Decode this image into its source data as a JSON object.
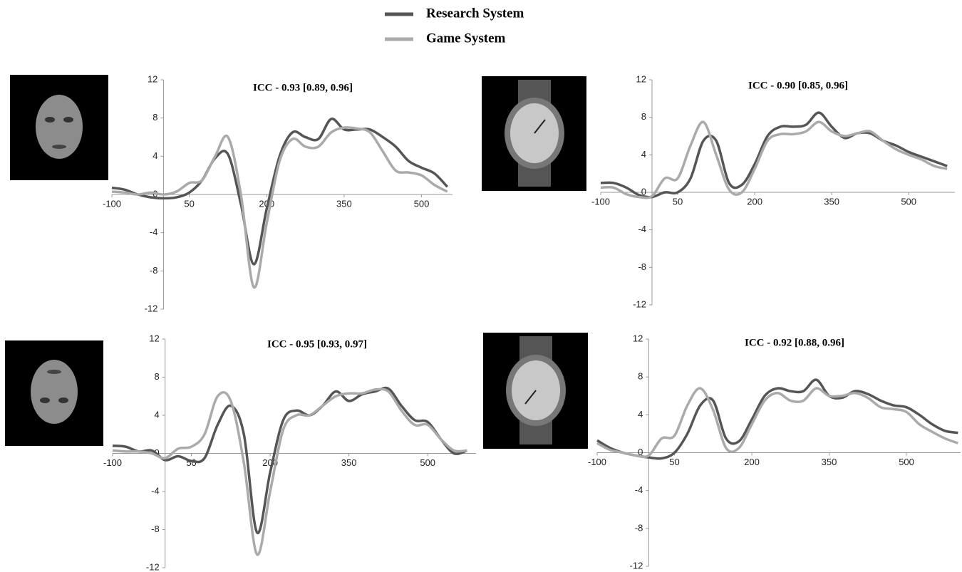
{
  "chart_data": [
    {
      "type": "line",
      "title": "ICC - 0.93 [0.89, 0.96]",
      "x": [
        -100,
        -75,
        -50,
        -25,
        0,
        25,
        50,
        75,
        100,
        125,
        150,
        175,
        200,
        225,
        250,
        275,
        300,
        325,
        350,
        375,
        400,
        425,
        450,
        475,
        500,
        525,
        550
      ],
      "series": [
        {
          "name": "Research System",
          "color": "#555555",
          "values": [
            0.7,
            0.5,
            0,
            -0.3,
            -0.4,
            -0.3,
            0.2,
            1.5,
            3.8,
            4.2,
            -1,
            -7.3,
            -1.5,
            4,
            6.5,
            6,
            5.8,
            7.9,
            6.8,
            6.8,
            6.8,
            6,
            5,
            3.5,
            2.8,
            2.2,
            0.8
          ]
        },
        {
          "name": "Game System",
          "color": "#aaaaaa",
          "values": [
            0.3,
            0.2,
            0,
            0.2,
            0,
            0.3,
            1.2,
            1.5,
            4,
            6,
            0,
            -9.7,
            -3,
            3.5,
            5.8,
            5,
            5,
            6.5,
            7,
            6.9,
            6.5,
            4.5,
            2.5,
            2.3,
            2,
            1,
            0.3
          ]
        }
      ],
      "xlim": [
        -100,
        560
      ],
      "ylim": [
        -12,
        12
      ],
      "xticks": [
        -100,
        50,
        200,
        350,
        500
      ],
      "yticks": [
        -12,
        -8,
        -4,
        0,
        4,
        8,
        12
      ]
    },
    {
      "type": "line",
      "title": "ICC - 0.90 [0.85, 0.96]",
      "x": [
        -100,
        -75,
        -50,
        -25,
        0,
        25,
        50,
        75,
        100,
        125,
        150,
        175,
        200,
        225,
        250,
        275,
        300,
        325,
        350,
        375,
        400,
        425,
        450,
        475,
        500,
        525,
        550,
        575
      ],
      "series": [
        {
          "color": "#555555",
          "values": [
            1,
            1,
            0.5,
            -0.3,
            -0.5,
            0,
            0,
            1.5,
            5.5,
            5.5,
            1,
            0.8,
            3,
            6,
            7,
            7,
            7.2,
            8.5,
            7,
            5.8,
            6.3,
            6.3,
            5.5,
            5,
            4.3,
            3.8,
            3.3,
            2.8
          ]
        },
        {
          "color": "#aaaaaa",
          "values": [
            0.5,
            0.5,
            -0.2,
            -0.5,
            -0.4,
            1.5,
            1.5,
            5,
            7.5,
            4,
            0.3,
            0,
            2.5,
            5.5,
            6.2,
            6.2,
            6.5,
            7.5,
            6.5,
            6,
            6.3,
            6.5,
            5.5,
            4.6,
            4,
            3.5,
            2.8,
            2.5
          ]
        }
      ],
      "xlim": [
        -100,
        590
      ],
      "ylim": [
        -12,
        12
      ],
      "xticks": [
        -100,
        50,
        200,
        350,
        500
      ],
      "yticks": [
        -12,
        -8,
        -4,
        0,
        4,
        8,
        12
      ]
    },
    {
      "type": "line",
      "title": "ICC - 0.95 [0.93, 0.97]",
      "x": [
        -100,
        -75,
        -50,
        -25,
        0,
        25,
        50,
        75,
        100,
        125,
        150,
        175,
        200,
        225,
        250,
        275,
        300,
        325,
        350,
        375,
        400,
        425,
        450,
        475,
        500,
        525,
        550,
        575
      ],
      "series": [
        {
          "color": "#555555",
          "values": [
            0.8,
            0.7,
            0.2,
            0.3,
            -0.7,
            -0.3,
            -0.8,
            -0.5,
            3,
            5,
            2,
            -8.3,
            -2,
            3.5,
            4.5,
            4,
            5,
            6.5,
            5.5,
            6.2,
            6.5,
            6.8,
            5,
            3.5,
            3.3,
            1.5,
            0,
            0.3
          ]
        },
        {
          "color": "#aaaaaa",
          "values": [
            0.3,
            0.2,
            0.2,
            0,
            -0.5,
            0.5,
            0.7,
            2,
            6,
            5.5,
            -1,
            -10.6,
            -4,
            2.5,
            4,
            4,
            5,
            6,
            6.3,
            6.3,
            6.7,
            6.5,
            4.5,
            3,
            3,
            1.5,
            0.3,
            0.3
          ]
        }
      ],
      "xlim": [
        -100,
        592
      ],
      "ylim": [
        -12,
        12
      ],
      "xticks": [
        -100,
        50,
        200,
        350,
        500
      ],
      "yticks": [
        -12,
        -8,
        -4,
        0,
        4,
        8,
        12
      ]
    },
    {
      "type": "line",
      "title": "ICC - 0.92 [0.88, 0.96]",
      "x": [
        -100,
        -75,
        -50,
        -25,
        0,
        25,
        50,
        75,
        100,
        125,
        150,
        175,
        200,
        225,
        250,
        275,
        300,
        325,
        350,
        375,
        400,
        425,
        450,
        475,
        500,
        525,
        550,
        575,
        600
      ],
      "series": [
        {
          "color": "#555555",
          "values": [
            1.3,
            0.5,
            0,
            -0.3,
            -0.5,
            -0.6,
            0,
            2,
            5,
            5.5,
            1.5,
            1.2,
            3.5,
            6,
            6.8,
            6.5,
            6.5,
            7.7,
            6,
            5.8,
            6.5,
            6.2,
            5.5,
            5,
            4.8,
            4,
            3,
            2.3,
            2.1
          ]
        },
        {
          "color": "#aaaaaa",
          "values": [
            1,
            0.3,
            0,
            -0.3,
            -0.3,
            1.5,
            1.8,
            5,
            6.8,
            4.5,
            0.5,
            0.5,
            3,
            5.5,
            6.3,
            5.5,
            5.5,
            6.8,
            6,
            6,
            6.3,
            5.8,
            4.8,
            4.6,
            4.3,
            3,
            2.2,
            1.5,
            1
          ]
        }
      ],
      "xlim": [
        -100,
        605
      ],
      "ylim": [
        -12,
        12
      ],
      "xticks": [
        -100,
        50,
        200,
        350,
        500
      ],
      "yticks": [
        -12,
        -8,
        -4,
        0,
        4,
        8,
        12
      ]
    }
  ]
}
